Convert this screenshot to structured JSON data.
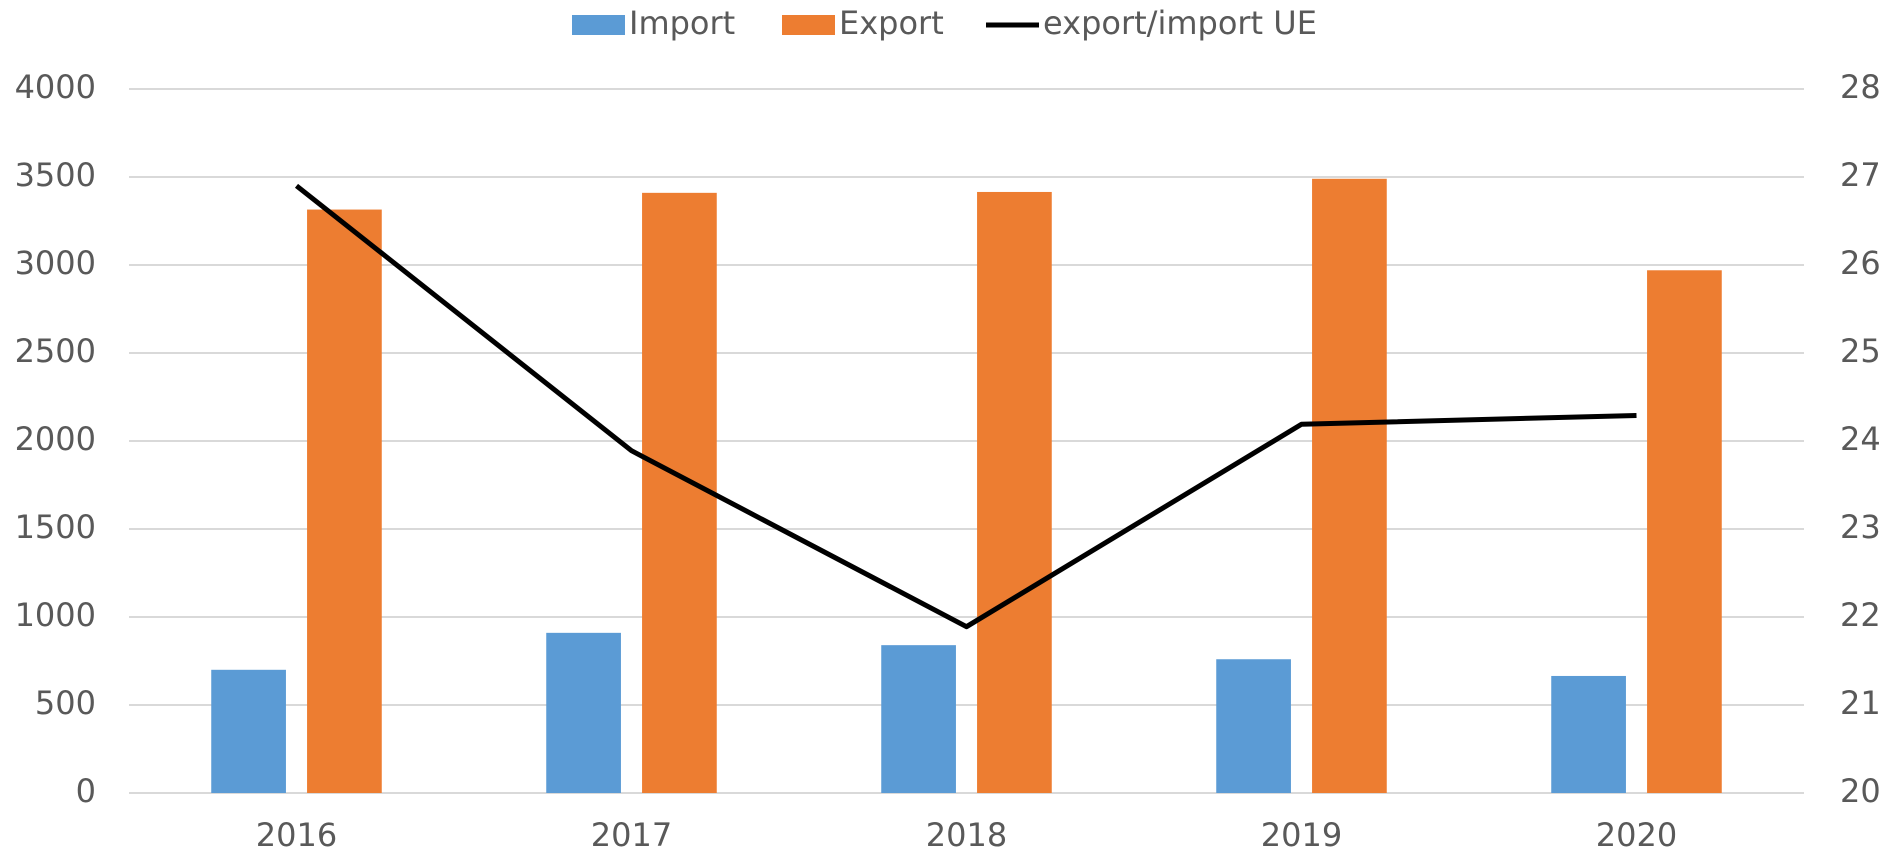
{
  "chart_data": {
    "type": "bar",
    "categories": [
      "2016",
      "2017",
      "2018",
      "2019",
      "2020"
    ],
    "series": [
      {
        "name": "Import",
        "color": "#5b9bd5",
        "values": [
          700,
          910,
          840,
          760,
          665
        ]
      },
      {
        "name": "Export",
        "color": "#ed7d31",
        "values": [
          3315,
          3410,
          3415,
          3490,
          2970
        ]
      },
      {
        "name": "export/import UE",
        "color": "#000000",
        "type": "line",
        "axis": "y2",
        "values": [
          26.9,
          23.89,
          21.89,
          24.19,
          24.29
        ]
      }
    ],
    "ylim": [
      0,
      4000
    ],
    "yticks": [
      0,
      500,
      1000,
      1500,
      2000,
      2500,
      3000,
      3500,
      4000
    ],
    "y2lim": [
      20,
      28
    ],
    "y2ticks": [
      20,
      21,
      22,
      23,
      24,
      25,
      26,
      27,
      28
    ],
    "grid": true,
    "legend": "top"
  }
}
